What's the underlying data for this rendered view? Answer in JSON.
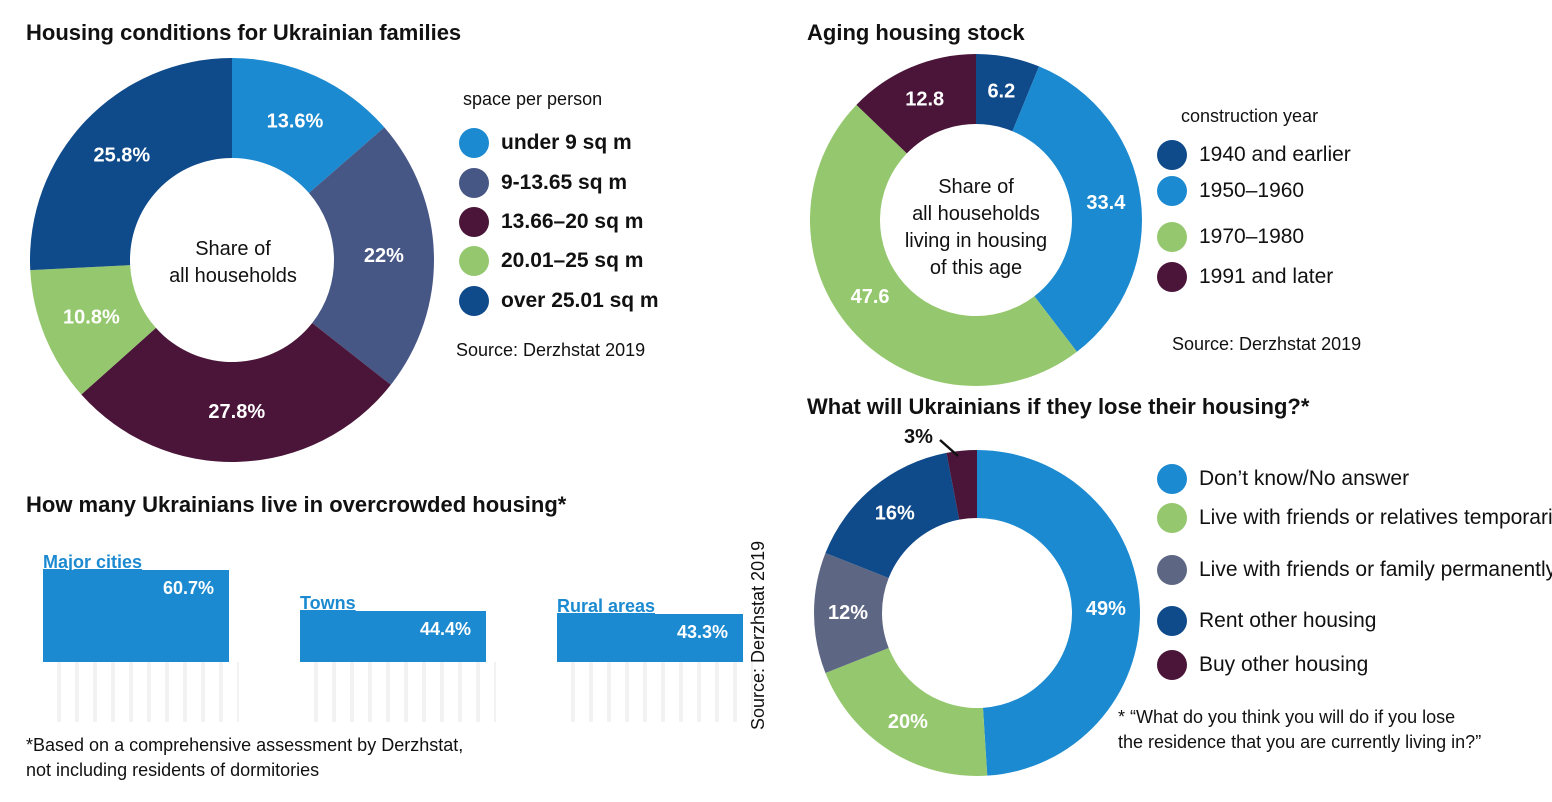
{
  "panel1": {
    "title": "Housing conditions for Ukrainian families",
    "legend_title": "space per person",
    "center_line1": "Share of",
    "center_line2": "all households",
    "source": "Source: Derzhstat 2019"
  },
  "panel2": {
    "title": "Aging housing stock",
    "legend_title": "construction year",
    "center_line1": "Share of",
    "center_line2": "all households",
    "center_line3": "living in housing",
    "center_line4": "of this age",
    "source": "Source: Derzhstat 2019"
  },
  "panel3": {
    "title": "What will Ukrainians if they lose their housing?*",
    "footnote_line1": "* “What do you think you will do if you lose",
    "footnote_line2": "the residence that you are currently living in?”"
  },
  "panel4": {
    "title": "How many Ukrainians live in overcrowded housing*",
    "footnote_line1": "*Based on a comprehensive assessment by Derzhstat,",
    "footnote_line2": "not including residents of dormitories",
    "source_vertical": "Source: Derzhstat 2019"
  },
  "chart_data": [
    {
      "type": "pie",
      "title": "Housing conditions for Ukrainian families",
      "legend_title": "space per person",
      "slices": [
        {
          "label": "under 9 sq m",
          "value": 13.6,
          "display": "13.6%",
          "color": "#1b8ad0"
        },
        {
          "label": "9-13.65 sq m",
          "value": 22,
          "display": "22%",
          "color": "#475785"
        },
        {
          "label": "13.66–20 sq m",
          "value": 27.8,
          "display": "27.8%",
          "color": "#4a1538"
        },
        {
          "label": "20.01–25 sq m",
          "value": 10.8,
          "display": "10.8%",
          "color": "#95c86e"
        },
        {
          "label": "over 25.01 sq m",
          "value": 25.8,
          "display": "25.8%",
          "color": "#0f4a8a"
        }
      ]
    },
    {
      "type": "pie",
      "title": "Aging housing stock",
      "legend_title": "construction year",
      "slices": [
        {
          "label": "1940 and earlier",
          "value": 6.2,
          "display": "6.2",
          "color": "#0f4a8a"
        },
        {
          "label": "1950–1960",
          "value": 33.4,
          "display": "33.4",
          "color": "#1b8ad0"
        },
        {
          "label": "1970–1980",
          "value": 47.6,
          "display": "47.6",
          "color": "#95c86e"
        },
        {
          "label": "1991 and later",
          "value": 12.8,
          "display": "12.8",
          "color": "#4a1538"
        }
      ]
    },
    {
      "type": "pie",
      "title": "What will Ukrainians if they lose their housing?*",
      "slices": [
        {
          "label": "Don’t know/No answer",
          "value": 49,
          "display": "49%",
          "color": "#1b8ad0"
        },
        {
          "label": "Live with friends or relatives temporarily",
          "value": 20,
          "display": "20%",
          "color": "#95c86e"
        },
        {
          "label": "Live with friends or family permanently",
          "value": 12,
          "display": "12%",
          "color": "#5d6683"
        },
        {
          "label": "Rent other housing",
          "value": 16,
          "display": "16%",
          "color": "#0f4a8a"
        },
        {
          "label": "Buy other housing",
          "value": 3,
          "display": "3%",
          "color": "#4a1538"
        }
      ]
    },
    {
      "type": "bar",
      "title": "How many Ukrainians live in overcrowded housing*",
      "categories": [
        "Major cities",
        "Towns",
        "Rural areas"
      ],
      "values": [
        60.7,
        44.4,
        43.3
      ],
      "display": [
        "60.7%",
        "44.4%",
        "43.3%"
      ],
      "color": "#1b8ad0"
    }
  ]
}
